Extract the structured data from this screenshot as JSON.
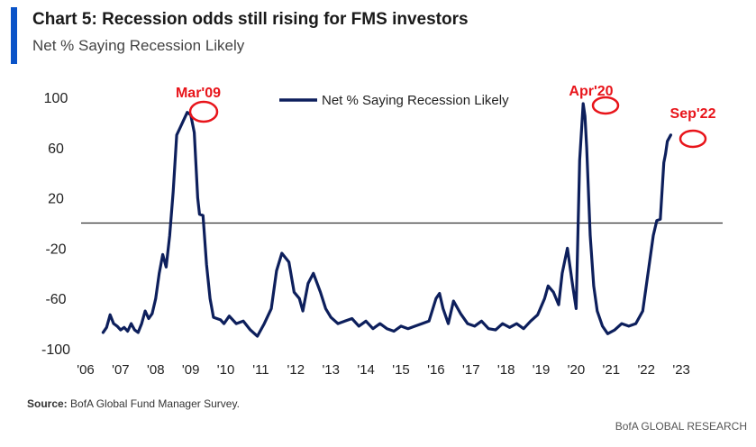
{
  "header": {
    "title": "Chart 5: Recession odds still rising for FMS investors",
    "subtitle": "Net % Saying Recession Likely",
    "accent_color": "#0a53c8"
  },
  "source": {
    "label": "Source:",
    "text": " BofA Global Fund Manager Survey."
  },
  "footer": {
    "text": "BofA GLOBAL RESEARCH"
  },
  "chart_data": {
    "type": "line",
    "title": "",
    "xlabel": "",
    "ylabel": "",
    "ylim": [
      -100,
      100
    ],
    "y_ticks": [
      100,
      60,
      20,
      -20,
      -60,
      -100
    ],
    "y_tick_labels": [
      "100",
      "60",
      "20",
      "-20",
      "-60",
      "-100"
    ],
    "x_ticks": [
      2006,
      2007,
      2008,
      2009,
      2010,
      2011,
      2012,
      2013,
      2014,
      2015,
      2016,
      2017,
      2018,
      2019,
      2020,
      2021,
      2022,
      2023
    ],
    "x_tick_labels": [
      "'06",
      "'07",
      "'08",
      "'09",
      "'10",
      "'11",
      "'12",
      "'13",
      "'14",
      "'15",
      "'16",
      "'17",
      "'18",
      "'19",
      "'20",
      "'21",
      "'22",
      "'23"
    ],
    "xlim": [
      2006,
      2024
    ],
    "reference_line": 0,
    "legend": {
      "position": "top-center",
      "entry": "Net % Saying Recession Likely"
    },
    "series": [
      {
        "name": "Net % Saying Recession Likely",
        "color": "#0d1f5c",
        "x": [
          2006.5,
          2006.6,
          2006.7,
          2006.8,
          2006.9,
          2007.0,
          2007.1,
          2007.2,
          2007.3,
          2007.4,
          2007.5,
          2007.6,
          2007.7,
          2007.8,
          2007.9,
          2008.0,
          2008.1,
          2008.2,
          2008.3,
          2008.4,
          2008.5,
          2008.6,
          2008.7,
          2008.8,
          2008.9,
          2009.0,
          2009.1,
          2009.2,
          2009.25,
          2009.35,
          2009.45,
          2009.55,
          2009.65,
          2009.75,
          2009.85,
          2009.95,
          2010.1,
          2010.3,
          2010.5,
          2010.7,
          2010.9,
          2011.1,
          2011.3,
          2011.45,
          2011.6,
          2011.8,
          2011.95,
          2012.1,
          2012.2,
          2012.35,
          2012.5,
          2012.7,
          2012.85,
          2013.0,
          2013.2,
          2013.4,
          2013.6,
          2013.8,
          2014.0,
          2014.2,
          2014.4,
          2014.6,
          2014.8,
          2015.0,
          2015.2,
          2015.4,
          2015.6,
          2015.8,
          2016.0,
          2016.1,
          2016.2,
          2016.35,
          2016.5,
          2016.7,
          2016.9,
          2017.1,
          2017.3,
          2017.5,
          2017.7,
          2017.9,
          2018.1,
          2018.3,
          2018.5,
          2018.7,
          2018.9,
          2019.1,
          2019.2,
          2019.35,
          2019.5,
          2019.6,
          2019.75,
          2019.9,
          2020.0,
          2020.1,
          2020.2,
          2020.25,
          2020.3,
          2020.4,
          2020.5,
          2020.6,
          2020.75,
          2020.9,
          2021.1,
          2021.3,
          2021.5,
          2021.7,
          2021.9,
          2022.1,
          2022.2,
          2022.3,
          2022.4,
          2022.5,
          2022.55,
          2022.6,
          2022.7
        ],
        "y": [
          -87,
          -83,
          -73,
          -80,
          -82,
          -85,
          -83,
          -86,
          -80,
          -85,
          -87,
          -80,
          -70,
          -76,
          -72,
          -60,
          -40,
          -25,
          -35,
          -10,
          25,
          70,
          76,
          82,
          88,
          86,
          72,
          20,
          7,
          6,
          -33,
          -60,
          -75,
          -76,
          -77,
          -80,
          -74,
          -80,
          -78,
          -85,
          -90,
          -80,
          -68,
          -38,
          -24,
          -31,
          -55,
          -60,
          -70,
          -48,
          -40,
          -55,
          -68,
          -75,
          -80,
          -78,
          -76,
          -82,
          -78,
          -84,
          -80,
          -84,
          -86,
          -82,
          -84,
          -82,
          -80,
          -78,
          -60,
          -56,
          -68,
          -80,
          -62,
          -72,
          -80,
          -82,
          -78,
          -84,
          -85,
          -80,
          -83,
          -80,
          -84,
          -78,
          -73,
          -60,
          -50,
          -55,
          -65,
          -40,
          -20,
          -50,
          -68,
          50,
          95,
          85,
          60,
          -10,
          -50,
          -70,
          -82,
          -88,
          -85,
          -80,
          -82,
          -80,
          -70,
          -30,
          -10,
          2,
          3,
          48,
          55,
          65,
          70
        ]
      }
    ],
    "annotations": [
      {
        "label": "Mar'09",
        "x": 2009.2,
        "y": 88
      },
      {
        "label": "Apr'20",
        "x": 2020.3,
        "y": 95
      },
      {
        "label": "Sep'22",
        "x": 2022.8,
        "y": 70
      }
    ]
  }
}
